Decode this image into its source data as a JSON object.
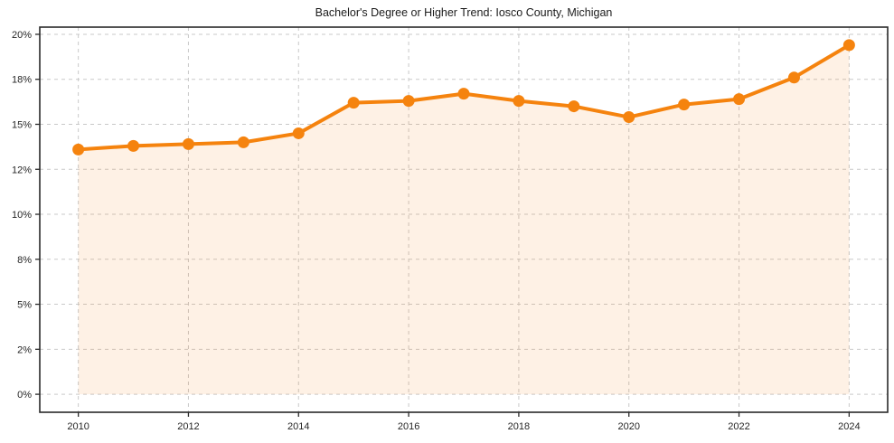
{
  "chart_data": {
    "type": "line",
    "title": "Bachelor's Degree or Higher Trend: Iosco County, Michigan",
    "xlabel": "",
    "ylabel": "",
    "x": [
      2010,
      2011,
      2012,
      2013,
      2014,
      2015,
      2016,
      2017,
      2018,
      2019,
      2020,
      2021,
      2022,
      2023,
      2024
    ],
    "values": [
      13.6,
      13.8,
      13.9,
      14.0,
      14.5,
      16.2,
      16.3,
      16.7,
      16.3,
      16.0,
      15.4,
      16.1,
      16.4,
      17.6,
      19.4
    ],
    "unit": "%",
    "xticks": {
      "values": [
        2010,
        2012,
        2014,
        2016,
        2018,
        2020,
        2022,
        2024
      ],
      "labels": [
        "2010",
        "2012",
        "2014",
        "2016",
        "2018",
        "2020",
        "2022",
        "2024"
      ]
    },
    "yticks": {
      "values": [
        0,
        2.5,
        5,
        7.5,
        10,
        12.5,
        15,
        17.5,
        20
      ],
      "labels": [
        "0%",
        "2%",
        "5%",
        "8%",
        "10%",
        "12%",
        "15%",
        "18%",
        "20%"
      ]
    },
    "xlim": [
      2009.3,
      2024.7
    ],
    "ylim": [
      -1.0,
      20.4
    ],
    "grid": "dashed-both-axes",
    "legend_position": "none",
    "marker": "circle",
    "area_fill": true,
    "colors": {
      "line": "#f5830e",
      "marker": "#f5830e",
      "fill": "rgba(245,131,14,0.11)",
      "grid": "#c9c9c9",
      "spine": "#2a2a2a",
      "text": "#262626",
      "title": "#1a1a1a",
      "background": "#ffffff"
    }
  }
}
